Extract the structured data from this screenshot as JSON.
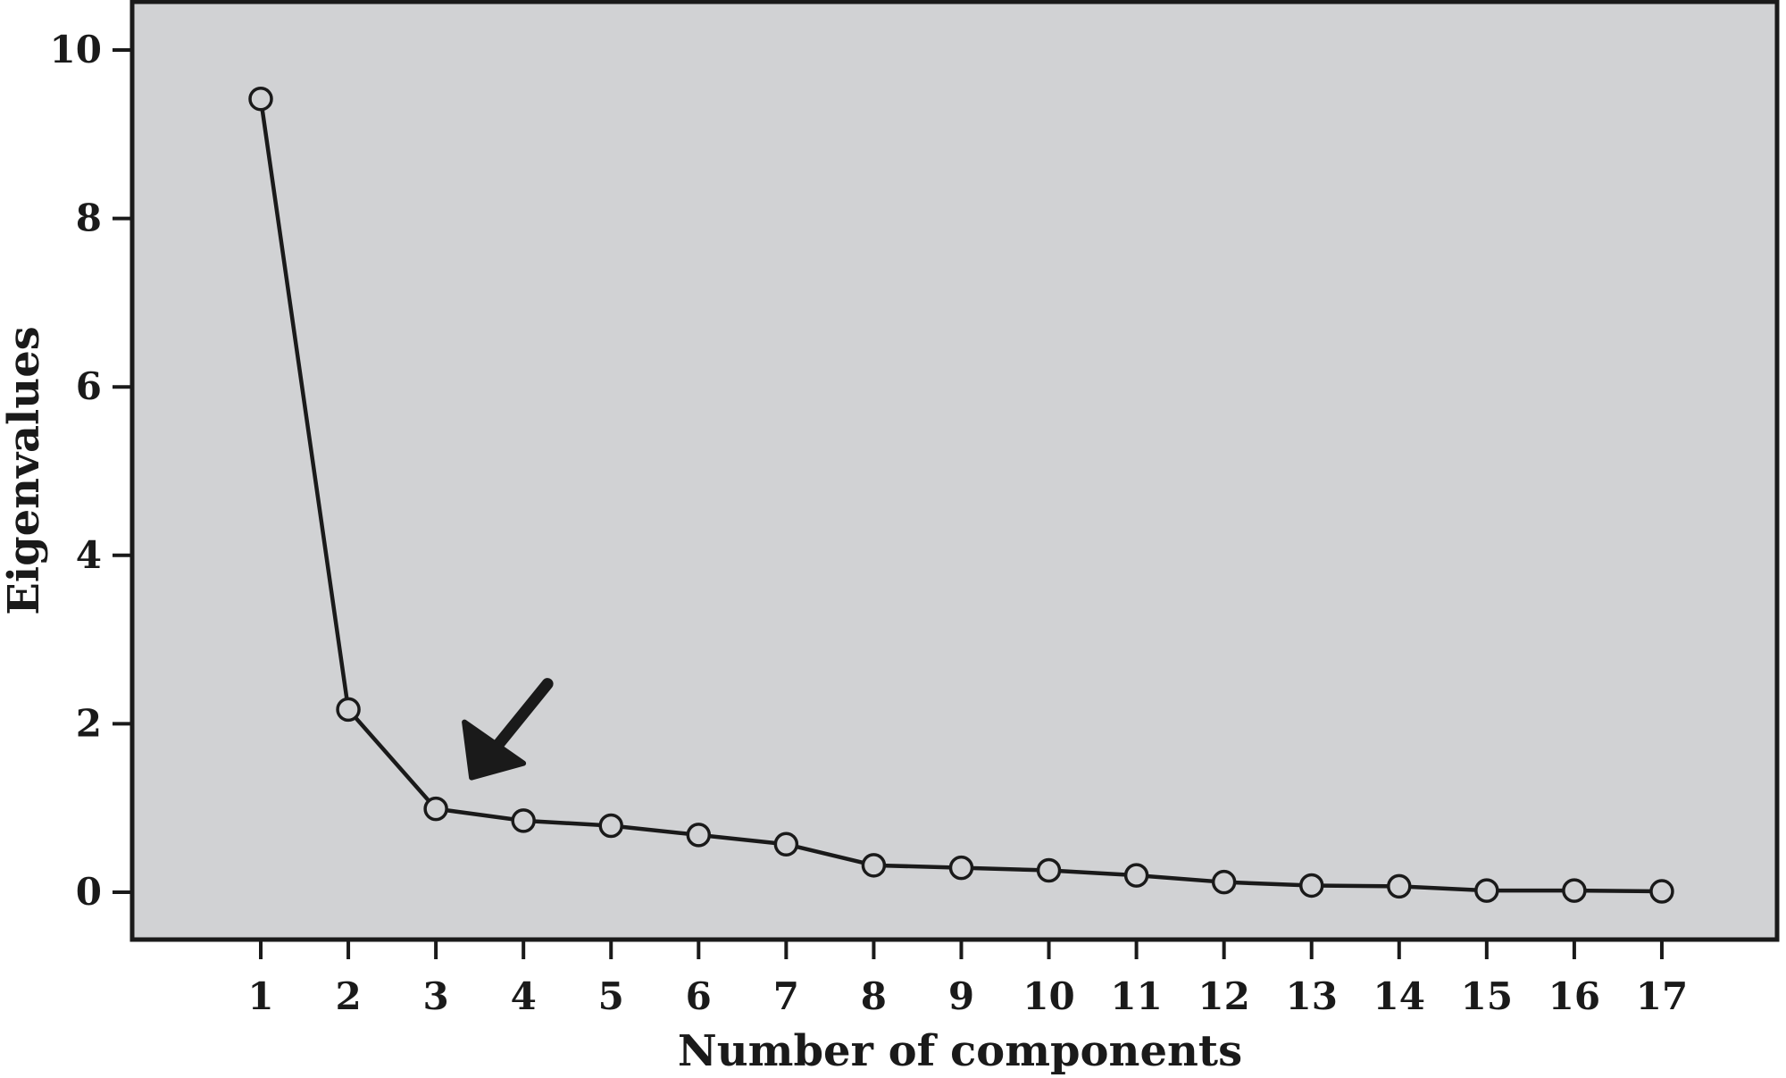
{
  "chart_data": {
    "type": "line",
    "title": "",
    "xlabel": "Number of components",
    "ylabel": "Eigenvalues",
    "x": [
      1,
      2,
      3,
      4,
      5,
      6,
      7,
      8,
      9,
      10,
      11,
      12,
      13,
      14,
      15,
      16,
      17
    ],
    "x_tick_labels": [
      "1",
      "2",
      "3",
      "4",
      "5",
      "6",
      "7",
      "8",
      "9",
      "10",
      "11",
      "12",
      "13",
      "14",
      "15",
      "16",
      "17"
    ],
    "series": [
      {
        "values": [
          9.42,
          2.17,
          0.99,
          0.85,
          0.79,
          0.68,
          0.57,
          0.32,
          0.29,
          0.26,
          0.2,
          0.12,
          0.08,
          0.07,
          0.02,
          0.02,
          0.01
        ],
        "marker": "open-circle",
        "color": "#1a1a1a"
      }
    ],
    "ylim": [
      0,
      10
    ],
    "y_ticks": [
      0,
      2,
      4,
      6,
      8,
      10
    ],
    "y_tick_labels": [
      "0",
      "2",
      "4",
      "6",
      "8",
      "10"
    ],
    "grid": false,
    "legend": "none",
    "plot_background": "#d1d2d4",
    "annotations": [
      {
        "type": "arrow",
        "points_to_x": 3,
        "points_to_y": 0.99,
        "color": "#1a1a1a"
      }
    ]
  }
}
